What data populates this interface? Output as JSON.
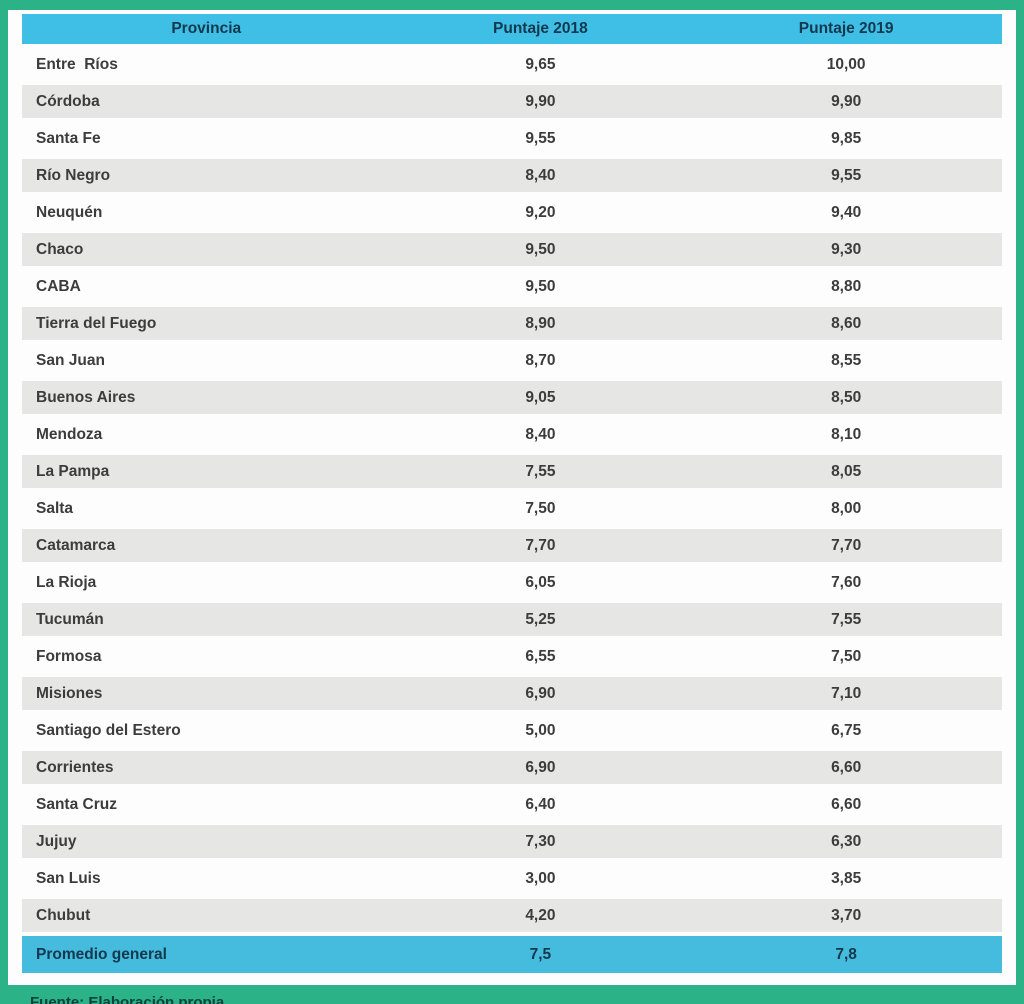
{
  "colors": {
    "frame_green": "#2bb287",
    "panel_white": "#fdfdfd",
    "header_cyan": "#3fbfe6",
    "footer_cyan": "#45bcdd",
    "alt_row_gray": "#e6e6e4",
    "header_text": "#14384e",
    "body_text": "#3c3c3c"
  },
  "table": {
    "columns": [
      "Provincia",
      "Puntaje 2018",
      "Puntaje 2019"
    ],
    "rows": [
      {
        "provincia": "Entre  Ríos",
        "p2018": "9,65",
        "p2019": "10,00"
      },
      {
        "provincia": "Córdoba",
        "p2018": "9,90",
        "p2019": "9,90"
      },
      {
        "provincia": "Santa Fe",
        "p2018": "9,55",
        "p2019": "9,85"
      },
      {
        "provincia": "Río Negro",
        "p2018": "8,40",
        "p2019": "9,55"
      },
      {
        "provincia": "Neuquén",
        "p2018": "9,20",
        "p2019": "9,40"
      },
      {
        "provincia": "Chaco",
        "p2018": "9,50",
        "p2019": "9,30"
      },
      {
        "provincia": "CABA",
        "p2018": "9,50",
        "p2019": "8,80"
      },
      {
        "provincia": "Tierra del Fuego",
        "p2018": "8,90",
        "p2019": "8,60"
      },
      {
        "provincia": "San Juan",
        "p2018": "8,70",
        "p2019": "8,55"
      },
      {
        "provincia": "Buenos Aires",
        "p2018": "9,05",
        "p2019": "8,50"
      },
      {
        "provincia": "Mendoza",
        "p2018": "8,40",
        "p2019": "8,10"
      },
      {
        "provincia": "La Pampa",
        "p2018": "7,55",
        "p2019": "8,05"
      },
      {
        "provincia": "Salta",
        "p2018": "7,50",
        "p2019": "8,00"
      },
      {
        "provincia": "Catamarca",
        "p2018": "7,70",
        "p2019": "7,70"
      },
      {
        "provincia": "La Rioja",
        "p2018": "6,05",
        "p2019": "7,60"
      },
      {
        "provincia": "Tucumán",
        "p2018": "5,25",
        "p2019": "7,55"
      },
      {
        "provincia": "Formosa",
        "p2018": "6,55",
        "p2019": "7,50"
      },
      {
        "provincia": "Misiones",
        "p2018": "6,90",
        "p2019": "7,10"
      },
      {
        "provincia": "Santiago del Estero",
        "p2018": "5,00",
        "p2019": "6,75"
      },
      {
        "provincia": "Corrientes",
        "p2018": "6,90",
        "p2019": "6,60"
      },
      {
        "provincia": "Santa Cruz",
        "p2018": "6,40",
        "p2019": "6,60"
      },
      {
        "provincia": "Jujuy",
        "p2018": "7,30",
        "p2019": "6,30"
      },
      {
        "provincia": "San Luis",
        "p2018": "3,00",
        "p2019": "3,85"
      },
      {
        "provincia": "Chubut",
        "p2018": "4,20",
        "p2019": "3,70"
      }
    ],
    "footer": {
      "provincia": "Promedio general",
      "p2018": "7,5",
      "p2019": "7,8"
    }
  },
  "caption": "Fuente: Elaboración propia",
  "chart_data": {
    "type": "table",
    "columns": [
      "Provincia",
      "Puntaje 2018",
      "Puntaje 2019"
    ],
    "rows": [
      [
        "Entre Ríos",
        9.65,
        10.0
      ],
      [
        "Córdoba",
        9.9,
        9.9
      ],
      [
        "Santa Fe",
        9.55,
        9.85
      ],
      [
        "Río Negro",
        8.4,
        9.55
      ],
      [
        "Neuquén",
        9.2,
        9.4
      ],
      [
        "Chaco",
        9.5,
        9.3
      ],
      [
        "CABA",
        9.5,
        8.8
      ],
      [
        "Tierra del Fuego",
        8.9,
        8.6
      ],
      [
        "San Juan",
        8.7,
        8.55
      ],
      [
        "Buenos Aires",
        9.05,
        8.5
      ],
      [
        "Mendoza",
        8.4,
        8.1
      ],
      [
        "La Pampa",
        7.55,
        8.05
      ],
      [
        "Salta",
        7.5,
        8.0
      ],
      [
        "Catamarca",
        7.7,
        7.7
      ],
      [
        "La Rioja",
        6.05,
        7.6
      ],
      [
        "Tucumán",
        5.25,
        7.55
      ],
      [
        "Formosa",
        6.55,
        7.5
      ],
      [
        "Misiones",
        6.9,
        7.1
      ],
      [
        "Santiago del Estero",
        5.0,
        6.75
      ],
      [
        "Corrientes",
        6.9,
        6.6
      ],
      [
        "Santa Cruz",
        6.4,
        6.6
      ],
      [
        "Jujuy",
        7.3,
        6.3
      ],
      [
        "San Luis",
        3.0,
        3.85
      ],
      [
        "Chubut",
        4.2,
        3.7
      ]
    ],
    "footer_row": [
      "Promedio general",
      7.5,
      7.8
    ]
  }
}
